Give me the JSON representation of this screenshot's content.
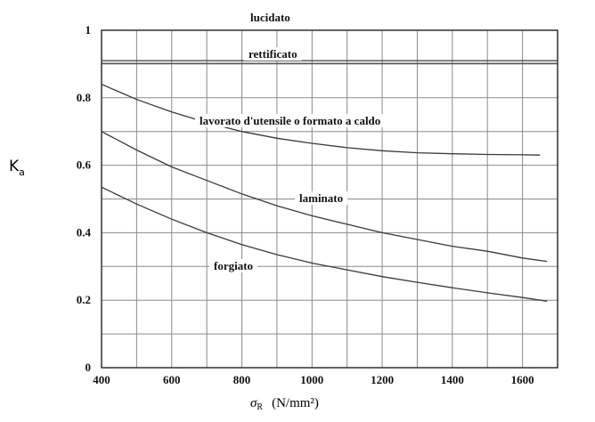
{
  "chart_data": {
    "type": "line",
    "title": "",
    "xlabel": {
      "symbol": "σ",
      "subscript": "R",
      "unit": "(N/mm²)"
    },
    "ylabel": {
      "main": "K",
      "subscript": "a"
    },
    "xlim": [
      400,
      1700
    ],
    "ylim": [
      0,
      1
    ],
    "x_ticks": [
      400,
      600,
      800,
      1000,
      1200,
      1400,
      1600
    ],
    "y_ticks": [
      {
        "value": 0,
        "label": "0"
      },
      {
        "value": 0.2,
        "label": "0.2"
      },
      {
        "value": 0.4,
        "label": "0.4"
      },
      {
        "value": 0.6,
        "label": "0.6"
      },
      {
        "value": 0.8,
        "label": "0.8"
      },
      {
        "value": 1,
        "label": "1"
      }
    ],
    "grid": true,
    "series": [
      {
        "name": "lucidato",
        "x": [
          400,
          1700
        ],
        "y": [
          1.0,
          1.0
        ]
      },
      {
        "name": "rettificato",
        "x": [
          400,
          1700
        ],
        "y": [
          0.91,
          0.91
        ]
      },
      {
        "name": "lavorato d'utensile o formato a caldo",
        "x": [
          400,
          500,
          600,
          700,
          800,
          900,
          1000,
          1100,
          1200,
          1300,
          1400,
          1500,
          1600,
          1650
        ],
        "y": [
          0.84,
          0.795,
          0.758,
          0.726,
          0.7,
          0.68,
          0.665,
          0.652,
          0.643,
          0.637,
          0.634,
          0.632,
          0.631,
          0.63
        ]
      },
      {
        "name": "laminato",
        "x": [
          400,
          500,
          600,
          700,
          800,
          900,
          1000,
          1100,
          1200,
          1300,
          1400,
          1500,
          1600,
          1670
        ],
        "y": [
          0.7,
          0.645,
          0.595,
          0.555,
          0.515,
          0.48,
          0.45,
          0.425,
          0.4,
          0.38,
          0.36,
          0.345,
          0.325,
          0.315
        ]
      },
      {
        "name": "forgiato",
        "x": [
          400,
          500,
          600,
          700,
          800,
          900,
          1000,
          1100,
          1200,
          1300,
          1400,
          1500,
          1600,
          1670
        ],
        "y": [
          0.535,
          0.485,
          0.44,
          0.4,
          0.365,
          0.335,
          0.31,
          0.29,
          0.27,
          0.253,
          0.237,
          0.222,
          0.208,
          0.197
        ]
      }
    ]
  }
}
